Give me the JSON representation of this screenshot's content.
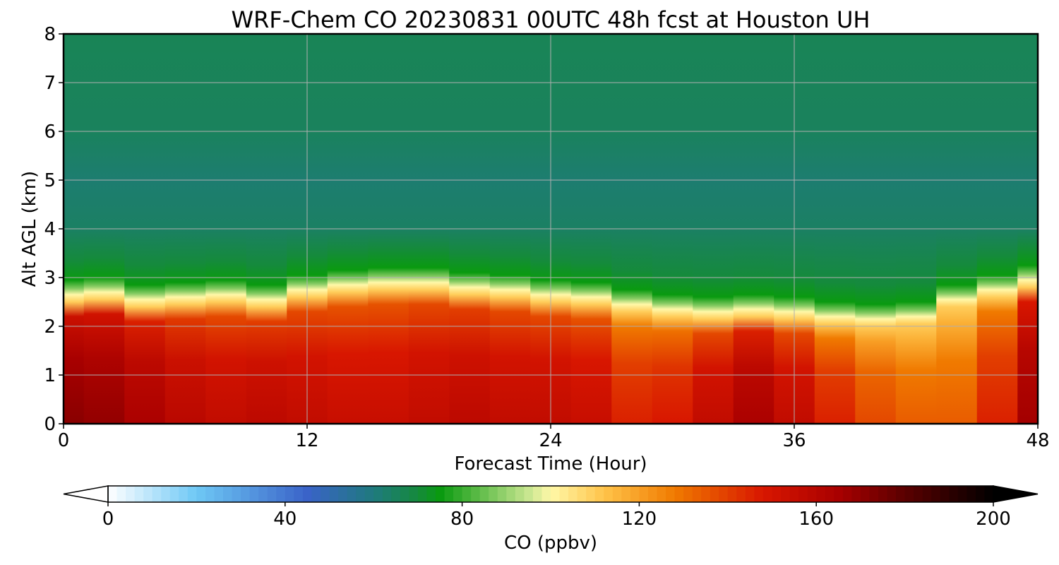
{
  "chart_data": {
    "type": "heatmap",
    "title": "WRF-Chem CO  20230831 00UTC 48h fcst at Houston UH",
    "xlabel": "Forecast Time (Hour)",
    "ylabel": "Alt AGL (km)",
    "xlim": [
      0,
      48
    ],
    "ylim": [
      0,
      8
    ],
    "xticks": [
      0,
      12,
      24,
      36,
      48
    ],
    "yticks": [
      0,
      1,
      2,
      3,
      4,
      5,
      6,
      7,
      8
    ],
    "grid": true,
    "colorbar": {
      "label": "CO  (ppbv)",
      "range": [
        0,
        200
      ],
      "ticks": [
        0,
        40,
        80,
        120,
        160,
        200
      ],
      "extend": "both",
      "orientation": "horizontal",
      "stops": [
        {
          "v": 0,
          "c": "#ffffff"
        },
        {
          "v": 20,
          "c": "#6ec8f5"
        },
        {
          "v": 45,
          "c": "#3a63c8"
        },
        {
          "v": 60,
          "c": "#1f7a7d"
        },
        {
          "v": 70,
          "c": "#158a3c"
        },
        {
          "v": 75,
          "c": "#0a9a10"
        },
        {
          "v": 95,
          "c": "#c8e690"
        },
        {
          "v": 100,
          "c": "#fff8a8"
        },
        {
          "v": 112,
          "c": "#ffc44a"
        },
        {
          "v": 128,
          "c": "#f07a00"
        },
        {
          "v": 148,
          "c": "#d81600"
        },
        {
          "v": 165,
          "c": "#a80000"
        },
        {
          "v": 180,
          "c": "#5a0000"
        },
        {
          "v": 200,
          "c": "#000000"
        }
      ]
    },
    "time_hours": [
      0,
      2,
      4,
      6,
      8,
      10,
      12,
      14,
      16,
      18,
      20,
      22,
      24,
      26,
      28,
      30,
      32,
      34,
      36,
      38,
      40,
      42,
      44,
      46,
      48
    ],
    "boundary_layer_top_km": [
      2.65,
      2.7,
      2.55,
      2.6,
      2.65,
      2.55,
      2.75,
      2.85,
      2.9,
      2.9,
      2.8,
      2.75,
      2.65,
      2.6,
      2.45,
      2.35,
      2.3,
      2.35,
      2.3,
      2.2,
      2.15,
      2.2,
      2.55,
      2.75,
      2.95
    ],
    "boundary_layer_co_ppbv": [
      165,
      163,
      158,
      153,
      150,
      152,
      150,
      148,
      148,
      150,
      152,
      150,
      150,
      148,
      140,
      142,
      150,
      158,
      150,
      140,
      132,
      128,
      128,
      140,
      160
    ],
    "free_troposphere_co_ppbv": {
      "3-4 km": 64,
      "4-6 km": 62,
      "6-8 km": 66
    }
  }
}
